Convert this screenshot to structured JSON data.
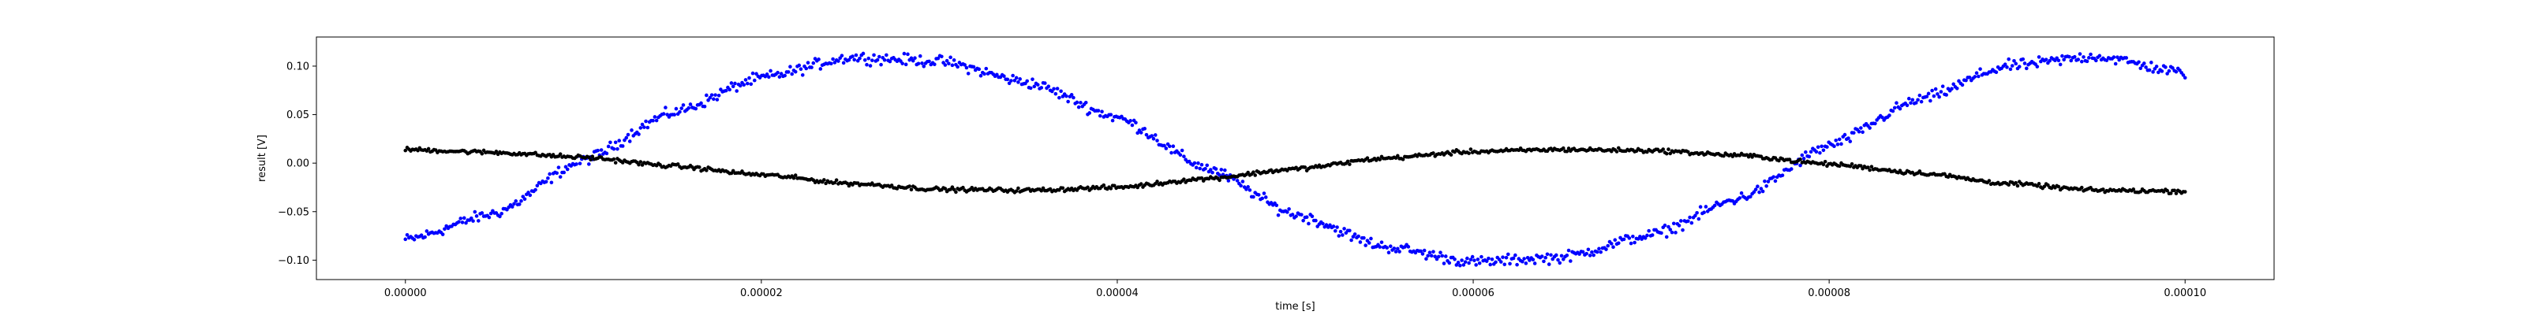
{
  "chart_data": {
    "type": "scatter",
    "xlabel": "time [s]",
    "ylabel": "result [V]",
    "xlim": [
      -5e-06,
      0.000105
    ],
    "ylim": [
      -0.12,
      0.13
    ],
    "xticks": [
      0.0,
      2e-05,
      4e-05,
      6e-05,
      8e-05,
      0.0001
    ],
    "xtick_labels": [
      "0.00000",
      "0.00002",
      "0.00004",
      "0.00006",
      "0.00008",
      "0.00010"
    ],
    "yticks": [
      -0.1,
      -0.05,
      0.0,
      0.05,
      0.1
    ],
    "ytick_labels": [
      "−0.10",
      "−0.05",
      "0.00",
      "0.05",
      "0.10"
    ],
    "grid": false,
    "series": [
      {
        "color": "#0000ff",
        "x_range": [
          0.0,
          0.0001
        ],
        "n_points": 1000,
        "points": [
          [
            0.0,
            -0.079
          ],
          [
            5e-06,
            -0.052
          ],
          [
            1e-05,
            0.003
          ],
          [
            1.5e-05,
            0.052
          ],
          [
            2e-05,
            0.088
          ],
          [
            2.5e-05,
            0.109
          ],
          [
            3e-05,
            0.105
          ],
          [
            3.5e-05,
            0.083
          ],
          [
            4e-05,
            0.047
          ],
          [
            4.5e-05,
            -0.005
          ],
          [
            5e-05,
            -0.053
          ],
          [
            5.5e-05,
            -0.086
          ],
          [
            6e-05,
            -0.102
          ],
          [
            6.5e-05,
            -0.097
          ],
          [
            7e-05,
            -0.074
          ],
          [
            7.5e-05,
            -0.036
          ],
          [
            8e-05,
            0.018
          ],
          [
            8.5e-05,
            0.065
          ],
          [
            9e-05,
            0.1
          ],
          [
            9.5e-05,
            0.11
          ],
          [
            0.0001,
            0.093
          ]
        ],
        "noise": 0.004
      },
      {
        "color": "#000000",
        "x_range": [
          0.0,
          0.0001
        ],
        "n_points": 1000,
        "points": [
          [
            0.0,
            0.014
          ],
          [
            5e-06,
            0.011
          ],
          [
            1e-05,
            0.006
          ],
          [
            1.5e-05,
            -0.003
          ],
          [
            2e-05,
            -0.012
          ],
          [
            2.5e-05,
            -0.021
          ],
          [
            3e-05,
            -0.027
          ],
          [
            3.5e-05,
            -0.028
          ],
          [
            4e-05,
            -0.025
          ],
          [
            4.5e-05,
            -0.016
          ],
          [
            5e-05,
            -0.006
          ],
          [
            5.5e-05,
            0.005
          ],
          [
            6e-05,
            0.012
          ],
          [
            6.5e-05,
            0.014
          ],
          [
            7e-05,
            0.013
          ],
          [
            7.5e-05,
            0.008
          ],
          [
            8e-05,
            -0.001
          ],
          [
            8.5e-05,
            -0.01
          ],
          [
            9e-05,
            -0.021
          ],
          [
            9.5e-05,
            -0.028
          ],
          [
            0.0001,
            -0.029
          ]
        ],
        "noise": 0.0015
      }
    ]
  }
}
